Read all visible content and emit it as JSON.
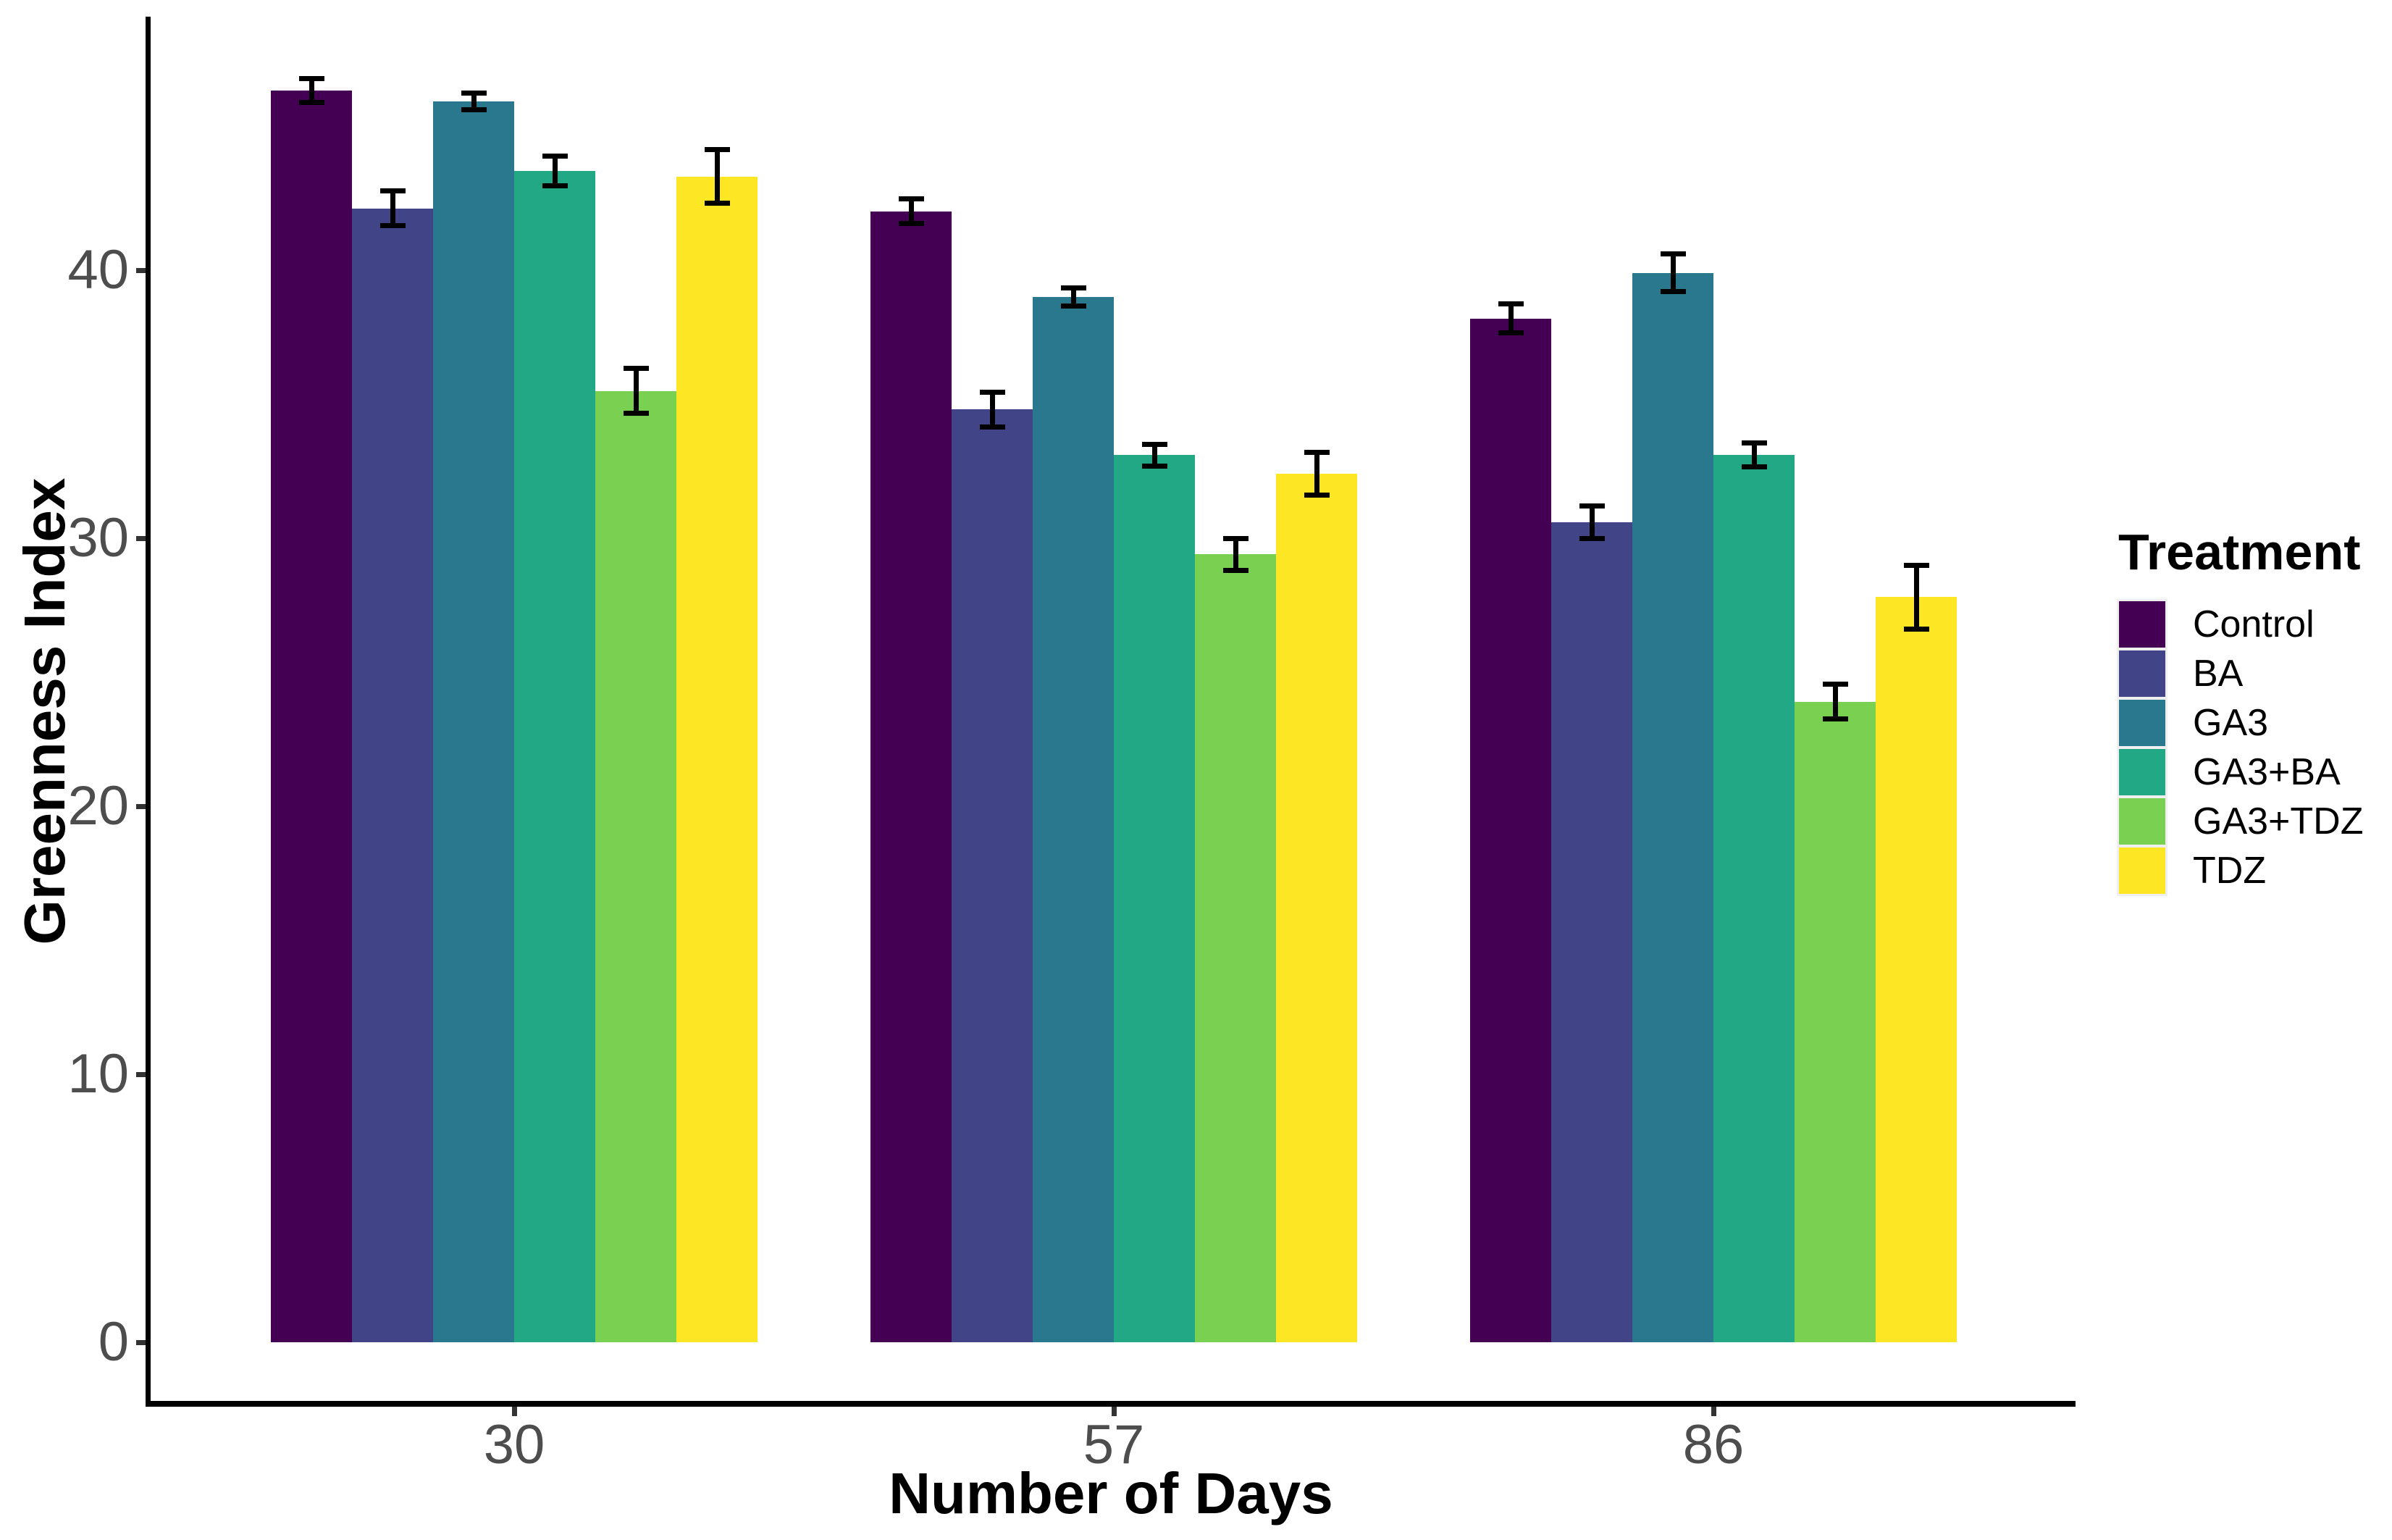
{
  "chart": {
    "y_axis": {
      "title": "Greenness Index",
      "tick_labels": [
        "0",
        "10",
        "20",
        "30",
        "40"
      ],
      "tick_values": [
        0,
        10,
        20,
        30,
        40
      ]
    },
    "x_axis": {
      "title": "Number of Days",
      "tick_labels": [
        "30",
        "57",
        "86"
      ]
    },
    "legend": {
      "title": "Treatment"
    },
    "colors": {
      "axis_line": "#000000",
      "tick_mark": "#333333",
      "tick_text": "#4d4d4d",
      "background": "#ffffff"
    }
  },
  "chart_data": {
    "type": "bar",
    "title": "",
    "xlabel": "Number of Days",
    "ylabel": "Greenness Index",
    "categories": [
      "30",
      "57",
      "86"
    ],
    "series": [
      {
        "name": "Control",
        "color": "#440154",
        "values": [
          46.7,
          42.2,
          38.2
        ],
        "errors": [
          0.45,
          0.45,
          0.55
        ]
      },
      {
        "name": "BA",
        "color": "#414487",
        "values": [
          42.3,
          34.8,
          30.6
        ],
        "errors": [
          0.65,
          0.65,
          0.6
        ]
      },
      {
        "name": "GA3",
        "color": "#2a788e",
        "values": [
          46.3,
          39.0,
          39.9
        ],
        "errors": [
          0.3,
          0.35,
          0.7
        ]
      },
      {
        "name": "GA3+BA",
        "color": "#22a884",
        "values": [
          43.7,
          33.1,
          33.1
        ],
        "errors": [
          0.55,
          0.4,
          0.45
        ]
      },
      {
        "name": "GA3+TDZ",
        "color": "#7ad151",
        "values": [
          35.5,
          29.4,
          23.9
        ],
        "errors": [
          0.85,
          0.6,
          0.65
        ]
      },
      {
        "name": "TDZ",
        "color": "#fde725",
        "values": [
          43.5,
          32.4,
          27.8
        ],
        "errors": [
          1.0,
          0.8,
          1.2
        ]
      }
    ],
    "ylim": [
      0,
      49.5
    ],
    "grid": false,
    "error_bars": true,
    "legend_position": "right",
    "legend_title": "Treatment"
  }
}
